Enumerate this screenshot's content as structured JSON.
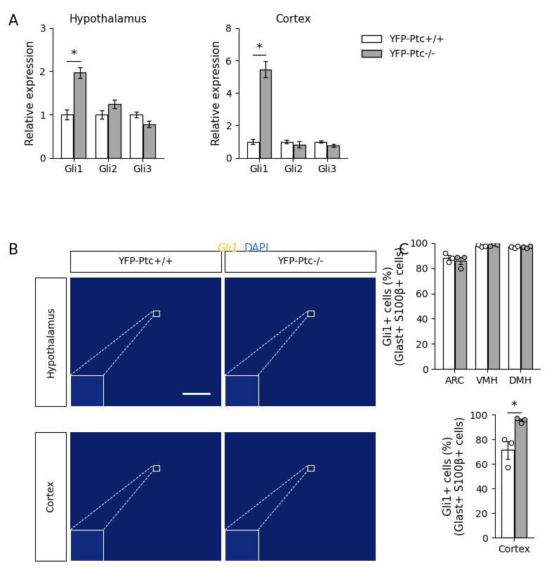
{
  "chart_data": [
    {
      "type": "bar",
      "title": "Hypothalamus",
      "y_label": "Relative expression",
      "categories": [
        "Gli1",
        "Gli2",
        "Gli3"
      ],
      "series": [
        {
          "name": "YFP-Ptc+/+",
          "color": "#ffffff",
          "values": [
            1.0,
            1.0,
            1.0
          ],
          "errors": [
            0.12,
            0.1,
            0.07
          ]
        },
        {
          "name": "YFP-Ptc-/-",
          "color": "#a6a6a6",
          "values": [
            1.97,
            1.25,
            0.78
          ],
          "errors": [
            0.12,
            0.1,
            0.07
          ]
        }
      ],
      "ylim": [
        0,
        3
      ],
      "yticks": [
        0,
        1,
        2,
        3
      ],
      "significance": [
        {
          "category": "Gli1",
          "label": "*"
        }
      ]
    },
    {
      "type": "bar",
      "title": "Cortex",
      "y_label": "Relative expression",
      "categories": [
        "Gli1",
        "Gli2",
        "Gli3"
      ],
      "series": [
        {
          "name": "YFP-Ptc+/+",
          "color": "#ffffff",
          "values": [
            1.0,
            1.0,
            1.0
          ],
          "errors": [
            0.15,
            0.12,
            0.08
          ]
        },
        {
          "name": "YFP-Ptc-/-",
          "color": "#a6a6a6",
          "values": [
            5.45,
            0.82,
            0.77
          ],
          "errors": [
            0.5,
            0.2,
            0.08
          ]
        }
      ],
      "ylim": [
        0,
        8
      ],
      "yticks": [
        0,
        2,
        4,
        6,
        8
      ],
      "legend": "upper left",
      "significance": [
        {
          "category": "Gli1",
          "label": "*"
        }
      ]
    },
    {
      "type": "bar",
      "y_label": "Gli1+ cells (%)\n(Glast+ S100β+ cells)",
      "categories": [
        "ARC",
        "VMH",
        "DMH"
      ],
      "series": [
        {
          "name": "YFP-Ptc+/+",
          "color": "#ffffff",
          "values": [
            88.3,
            98,
            97
          ],
          "errors": [
            2.0,
            0.6,
            0.6
          ],
          "points": [
            [
              92,
              85,
              88
            ],
            [
              99,
              97,
              98
            ],
            [
              97,
              96,
              98
            ]
          ]
        },
        {
          "name": "YFP-Ptc-/-",
          "color": "#a6a6a6",
          "values": [
            86,
            99,
            97
          ],
          "errors": [
            3.0,
            0.6,
            0.6
          ],
          "points": [
            [
              89,
              80,
              89
            ],
            [
              98,
              100,
              99
            ],
            [
              97,
              96,
              98
            ]
          ]
        }
      ],
      "ylim": [
        0,
        100
      ],
      "yticks": [
        0,
        20,
        40,
        60,
        80,
        100
      ]
    },
    {
      "type": "bar",
      "y_label": "Gli1+ cells (%)\n(Glast+ S100β+ cells)",
      "categories": [
        "Cortex"
      ],
      "series": [
        {
          "name": "YFP-Ptc+/+",
          "color": "#ffffff",
          "values": [
            71.3
          ],
          "errors": [
            7.0
          ],
          "points": [
            [
              80,
              57,
              77
            ]
          ]
        },
        {
          "name": "YFP-Ptc-/-",
          "color": "#a6a6a6",
          "values": [
            95.3
          ],
          "errors": [
            1.2
          ],
          "points": [
            [
              97,
              93,
              96
            ]
          ]
        }
      ],
      "ylim": [
        0,
        100
      ],
      "yticks": [
        0,
        20,
        40,
        60,
        80,
        100
      ],
      "significance": [
        {
          "category": "Cortex",
          "label": "*"
        }
      ]
    }
  ],
  "figure": {
    "panel_labels": [
      "A",
      "B",
      "C"
    ],
    "image_panel": {
      "stain_labels": [
        "Gli1",
        "DAPI"
      ],
      "columns": [
        "YFP-Ptc+/+",
        "YFP-Ptc-/-"
      ],
      "rows": [
        "Hypothalamus",
        "Cortex"
      ]
    }
  }
}
